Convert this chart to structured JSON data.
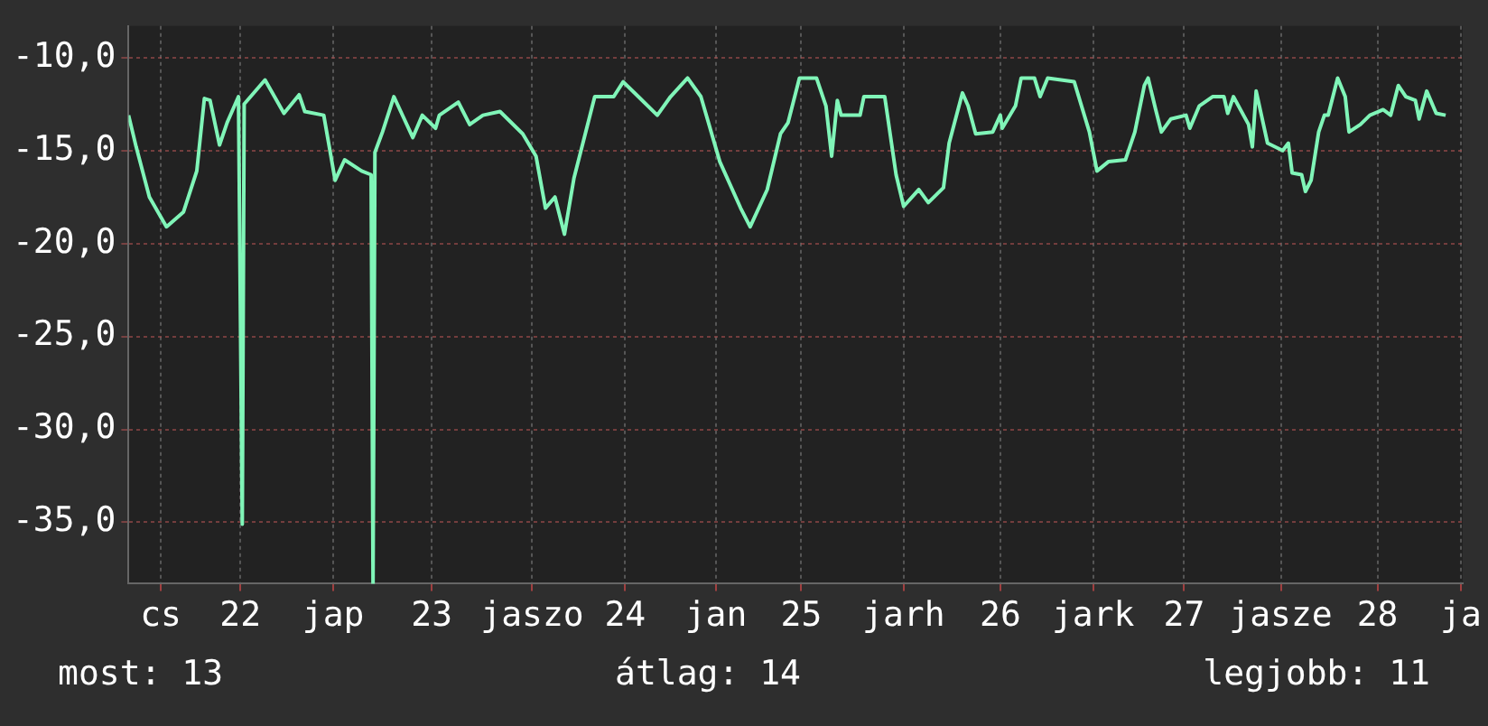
{
  "chart_data": {
    "type": "line",
    "x": [
      21.86,
      21.9,
      21.97,
      22.06,
      22.15,
      22.22,
      22.26,
      22.29,
      22.34,
      22.38,
      22.44,
      22.46,
      22.47,
      22.58,
      22.68,
      22.76,
      22.79,
      22.89,
      22.95,
      23.0,
      23.09,
      23.14,
      23.15,
      23.16,
      23.2,
      23.26,
      23.36,
      23.41,
      23.48,
      23.5,
      23.6,
      23.66,
      23.73,
      23.82,
      23.94,
      24.01,
      24.06,
      24.11,
      24.16,
      24.21,
      24.32,
      24.42,
      24.47,
      24.55,
      24.65,
      24.72,
      24.81,
      24.88,
      24.98,
      25.09,
      25.14,
      25.23,
      25.3,
      25.34,
      25.4,
      25.49,
      25.54,
      25.57,
      25.6,
      25.62,
      25.72,
      25.74,
      25.85,
      25.91,
      25.95,
      26.03,
      26.08,
      26.16,
      26.19,
      26.26,
      26.29,
      26.33,
      26.42,
      26.46,
      26.47,
      26.54,
      26.57,
      26.64,
      26.67,
      26.71,
      26.85,
      26.93,
      26.97,
      27.03,
      27.12,
      27.17,
      27.22,
      27.24,
      27.28,
      27.31,
      27.36,
      27.44,
      27.46,
      27.51,
      27.58,
      27.64,
      27.66,
      27.69,
      27.77,
      27.79,
      27.81,
      27.87,
      27.95,
      27.98,
      28.0,
      28.05,
      28.07,
      28.1,
      28.14,
      28.17,
      28.19,
      28.24,
      28.28,
      28.3,
      28.36,
      28.41,
      28.48,
      28.52,
      28.56,
      28.6,
      28.65,
      28.67,
      28.71,
      28.76,
      28.81
    ],
    "series": [
      {
        "color": "#80f5b8",
        "values": [
          -13.1,
          -14.8,
          -17.5,
          -19.1,
          -18.3,
          -16.1,
          -12.2,
          -12.3,
          -14.7,
          -13.5,
          -12.1,
          -35.1,
          -12.5,
          -11.2,
          -13.0,
          -12.0,
          -12.9,
          -13.1,
          -16.6,
          -15.5,
          -16.1,
          -16.3,
          -38.3,
          -15.1,
          -14.0,
          -12.1,
          -14.3,
          -13.1,
          -13.8,
          -13.1,
          -12.4,
          -13.6,
          -13.1,
          -12.9,
          -14.1,
          -15.3,
          -18.1,
          -17.5,
          -19.5,
          -16.5,
          -12.1,
          -12.1,
          -11.3,
          -12.1,
          -13.1,
          -12.1,
          -11.1,
          -12.1,
          -15.6,
          -18.1,
          -19.1,
          -17.1,
          -14.1,
          -13.5,
          -11.1,
          -11.1,
          -12.6,
          -15.3,
          -12.3,
          -13.1,
          -13.1,
          -12.1,
          -12.1,
          -16.3,
          -18.0,
          -17.1,
          -17.8,
          -17.0,
          -14.6,
          -11.9,
          -12.6,
          -14.1,
          -14.0,
          -13.1,
          -13.8,
          -12.6,
          -11.1,
          -11.1,
          -12.1,
          -11.1,
          -11.3,
          -14.0,
          -16.1,
          -15.6,
          -15.5,
          -14.0,
          -11.5,
          -11.1,
          -12.8,
          -14.0,
          -13.3,
          -13.1,
          -13.8,
          -12.6,
          -12.1,
          -12.1,
          -13.0,
          -12.1,
          -13.6,
          -14.8,
          -11.8,
          -14.6,
          -15.0,
          -14.6,
          -16.2,
          -16.3,
          -17.2,
          -16.6,
          -14.0,
          -13.1,
          -13.1,
          -11.1,
          -12.1,
          -14.0,
          -13.6,
          -13.1,
          -12.8,
          -13.1,
          -11.5,
          -12.1,
          -12.3,
          -13.3,
          -11.8,
          -13.0,
          -13.1
        ]
      }
    ],
    "xlim": [
      21.86,
      28.9
    ],
    "xticks": [
      {
        "value": 22.03,
        "label": "cs"
      },
      {
        "value": 22.45,
        "label": "22"
      },
      {
        "value": 22.94,
        "label": "jap"
      },
      {
        "value": 23.46,
        "label": "23"
      },
      {
        "value": 23.99,
        "label": "jaszo"
      },
      {
        "value": 24.48,
        "label": "24"
      },
      {
        "value": 24.96,
        "label": "jan"
      },
      {
        "value": 25.41,
        "label": "25"
      },
      {
        "value": 25.95,
        "label": "jarh"
      },
      {
        "value": 26.46,
        "label": "26"
      },
      {
        "value": 26.95,
        "label": "jark"
      },
      {
        "value": 27.43,
        "label": "27"
      },
      {
        "value": 27.94,
        "label": "jasze"
      },
      {
        "value": 28.45,
        "label": "28"
      },
      {
        "value": 28.89,
        "label": "ja"
      }
    ],
    "ylim": [
      -38.3,
      -8.3
    ],
    "yticks": [
      {
        "value": -35,
        "label": "-35,0"
      },
      {
        "value": -30,
        "label": "-30,0"
      },
      {
        "value": -25,
        "label": "-25,0"
      },
      {
        "value": -20,
        "label": "-20,0"
      },
      {
        "value": -15,
        "label": "-15,0"
      },
      {
        "value": -10,
        "label": "-10,0"
      }
    ],
    "grid": true,
    "legend": false,
    "marker": "none",
    "line_style": "solid",
    "annotations": [
      "most: 13",
      "átlag: 14",
      "legjobb: 11"
    ]
  }
}
